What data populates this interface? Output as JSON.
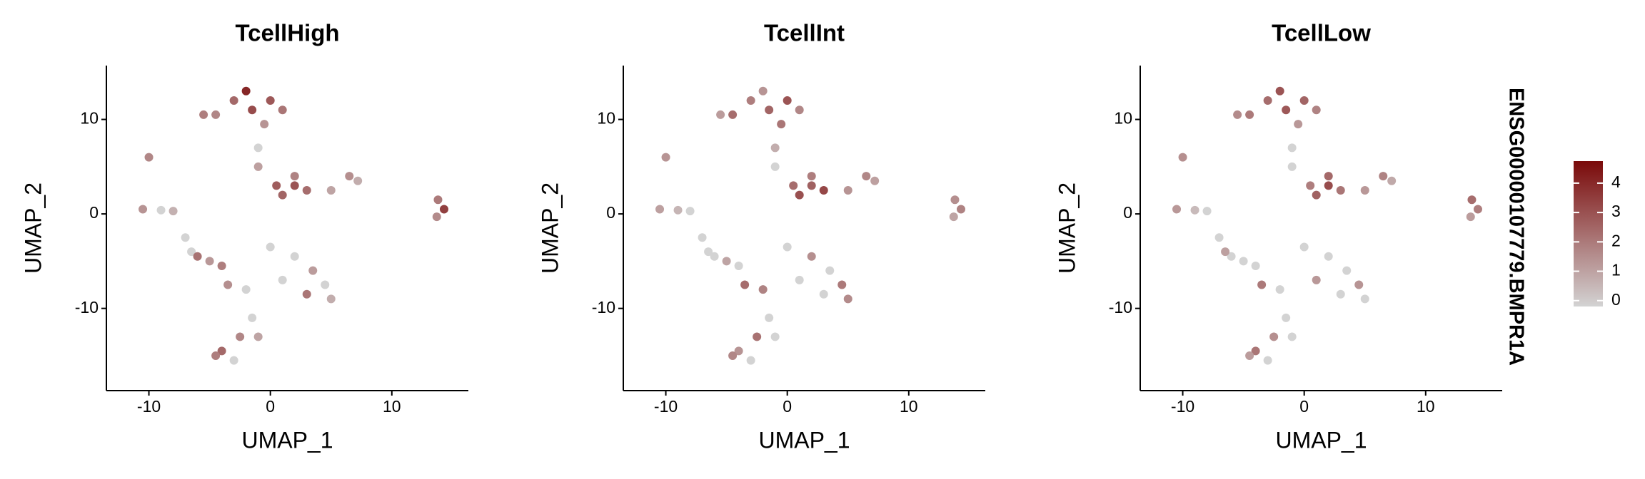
{
  "chart_data": [
    {
      "type": "scatter",
      "title": "TcellHigh",
      "x_label": "UMAP_1",
      "y_label": "UMAP_2",
      "xlim": [
        -13.5,
        16.3
      ],
      "ylim": [
        -18.7,
        15.7
      ],
      "xticks": [
        -10,
        0,
        10
      ],
      "yticks": [
        -10,
        0,
        10
      ],
      "x": [
        -1.5,
        -3,
        -4.5,
        -2,
        0,
        1,
        -0.5,
        -5.5,
        -1,
        -1,
        -10,
        -10.5,
        -9,
        -8,
        1,
        2,
        3,
        2,
        0.5,
        5,
        6.5,
        7.2,
        13.8,
        14.3,
        13.7,
        -7,
        -6,
        -5,
        -4,
        -6.5,
        0,
        2,
        3.5,
        4.5,
        3,
        -2,
        -3.5,
        1,
        5,
        -1.5,
        -2.5,
        -4,
        -3,
        -1,
        -4.5
      ],
      "y": [
        11,
        12,
        10.5,
        13,
        12,
        11,
        9.5,
        10.5,
        7,
        5,
        6,
        0.5,
        0.4,
        0.3,
        2,
        3,
        2.5,
        4,
        3,
        2.5,
        4,
        3.5,
        1.5,
        0.5,
        -0.3,
        -2.5,
        -4.5,
        -5,
        -5.5,
        -4,
        -3.5,
        -4.5,
        -6,
        -7.5,
        -8.5,
        -8,
        -7.5,
        -7,
        -9,
        -11,
        -13,
        -14.5,
        -15.5,
        -13,
        -15
      ],
      "values": [
        3.2,
        2.5,
        1.8,
        4.1,
        2.9,
        2.2,
        1.5,
        2.0,
        0,
        1.2,
        1.8,
        1.5,
        0,
        0.8,
        2.6,
        3.0,
        2.4,
        1.9,
        2.8,
        1.1,
        1.6,
        0.9,
        2.1,
        3.5,
        1.7,
        0,
        2.3,
        1.4,
        2.0,
        0,
        0,
        0,
        1.3,
        0,
        2.2,
        0,
        1.6,
        0,
        0.9,
        0,
        1.8,
        2.5,
        0,
        1.1,
        2.0
      ]
    },
    {
      "type": "scatter",
      "title": "TcellInt",
      "x_label": "UMAP_1",
      "y_label": "UMAP_2",
      "xlim": [
        -13.5,
        16.3
      ],
      "ylim": [
        -18.7,
        15.7
      ],
      "xticks": [
        -10,
        0,
        10
      ],
      "yticks": [
        -10,
        0,
        10
      ],
      "x": [
        -1.5,
        -3,
        -4.5,
        -2,
        0,
        1,
        -0.5,
        -5.5,
        -1,
        -1,
        -10,
        -10.5,
        -9,
        -8,
        1,
        2,
        3,
        2,
        0.5,
        5,
        6.5,
        7.2,
        13.8,
        14.3,
        13.7,
        -7,
        -6,
        -5,
        -4,
        -6.5,
        0,
        2,
        3.5,
        4.5,
        3,
        -2,
        -3.5,
        1,
        5,
        -1.5,
        -2.5,
        -4,
        -3,
        -1,
        -4.5
      ],
      "y": [
        11,
        12,
        10.5,
        13,
        12,
        11,
        9.5,
        10.5,
        7,
        5,
        6,
        0.5,
        0.4,
        0.3,
        2,
        3,
        2.5,
        4,
        3,
        2.5,
        4,
        3.5,
        1.5,
        0.5,
        -0.3,
        -2.5,
        -4.5,
        -5,
        -5.5,
        -4,
        -3.5,
        -4.5,
        -6,
        -7.5,
        -8.5,
        -8,
        -7.5,
        -7,
        -9,
        -11,
        -13,
        -14.5,
        -15.5,
        -13,
        -15
      ],
      "values": [
        2.6,
        2.0,
        2.4,
        1.5,
        3.0,
        1.8,
        2.2,
        1.3,
        0.9,
        0,
        1.5,
        1.2,
        0.7,
        0,
        3.1,
        2.7,
        3.3,
        2.0,
        2.4,
        1.5,
        1.8,
        1.2,
        1.6,
        1.9,
        1.1,
        0,
        0,
        1.1,
        0,
        0,
        0,
        1.6,
        0,
        2.1,
        0,
        1.9,
        2.4,
        0,
        1.7,
        0,
        2.3,
        1.5,
        0,
        0,
        1.8
      ]
    },
    {
      "type": "scatter",
      "title": "TcellLow",
      "x_label": "UMAP_1",
      "y_label": "UMAP_2",
      "xlim": [
        -13.5,
        16.3
      ],
      "ylim": [
        -18.7,
        15.7
      ],
      "xticks": [
        -10,
        0,
        10
      ],
      "yticks": [
        -10,
        0,
        10
      ],
      "x": [
        -1.5,
        -3,
        -4.5,
        -2,
        0,
        1,
        -0.5,
        -5.5,
        -1,
        -1,
        -10,
        -10.5,
        -9,
        -8,
        1,
        2,
        3,
        2,
        0.5,
        5,
        6.5,
        7.2,
        13.8,
        14.3,
        13.7,
        -7,
        -6,
        -5,
        -4,
        -6.5,
        0,
        2,
        3.5,
        4.5,
        3,
        -2,
        -3.5,
        1,
        5,
        -1.5,
        -2.5,
        -4,
        -3,
        -1,
        -4.5
      ],
      "y": [
        11,
        12,
        10.5,
        13,
        12,
        11,
        9.5,
        10.5,
        7,
        5,
        6,
        0.5,
        0.4,
        0.3,
        2,
        3,
        2.5,
        4,
        3,
        2.5,
        4,
        3.5,
        1.5,
        0.5,
        -0.3,
        -2.5,
        -4.5,
        -5,
        -5.5,
        -4,
        -3.5,
        -4.5,
        -6,
        -7.5,
        -8.5,
        -8,
        -7.5,
        -7,
        -9,
        -11,
        -13,
        -14.5,
        -15.5,
        -13,
        -15
      ],
      "values": [
        2.9,
        2.4,
        2.1,
        3.0,
        2.6,
        1.9,
        1.4,
        1.7,
        0,
        0,
        1.6,
        1.4,
        0.6,
        0,
        2.7,
        3.2,
        2.2,
        2.5,
        2.0,
        1.4,
        1.9,
        1.0,
        2.4,
        2.0,
        1.3,
        0,
        0,
        0,
        0,
        1.2,
        0,
        0,
        0,
        1.5,
        0,
        0,
        2.1,
        1.4,
        0,
        0,
        1.6,
        2.2,
        0,
        0,
        1.3
      ]
    }
  ],
  "colorbar": {
    "title": "ENSG00000107779.BMPR1A",
    "lim": [
      -0.2,
      4.75
    ],
    "ticks": [
      0,
      1,
      2,
      3,
      4
    ],
    "colors": [
      "#d3d3d3",
      "#7a0a0a"
    ]
  }
}
